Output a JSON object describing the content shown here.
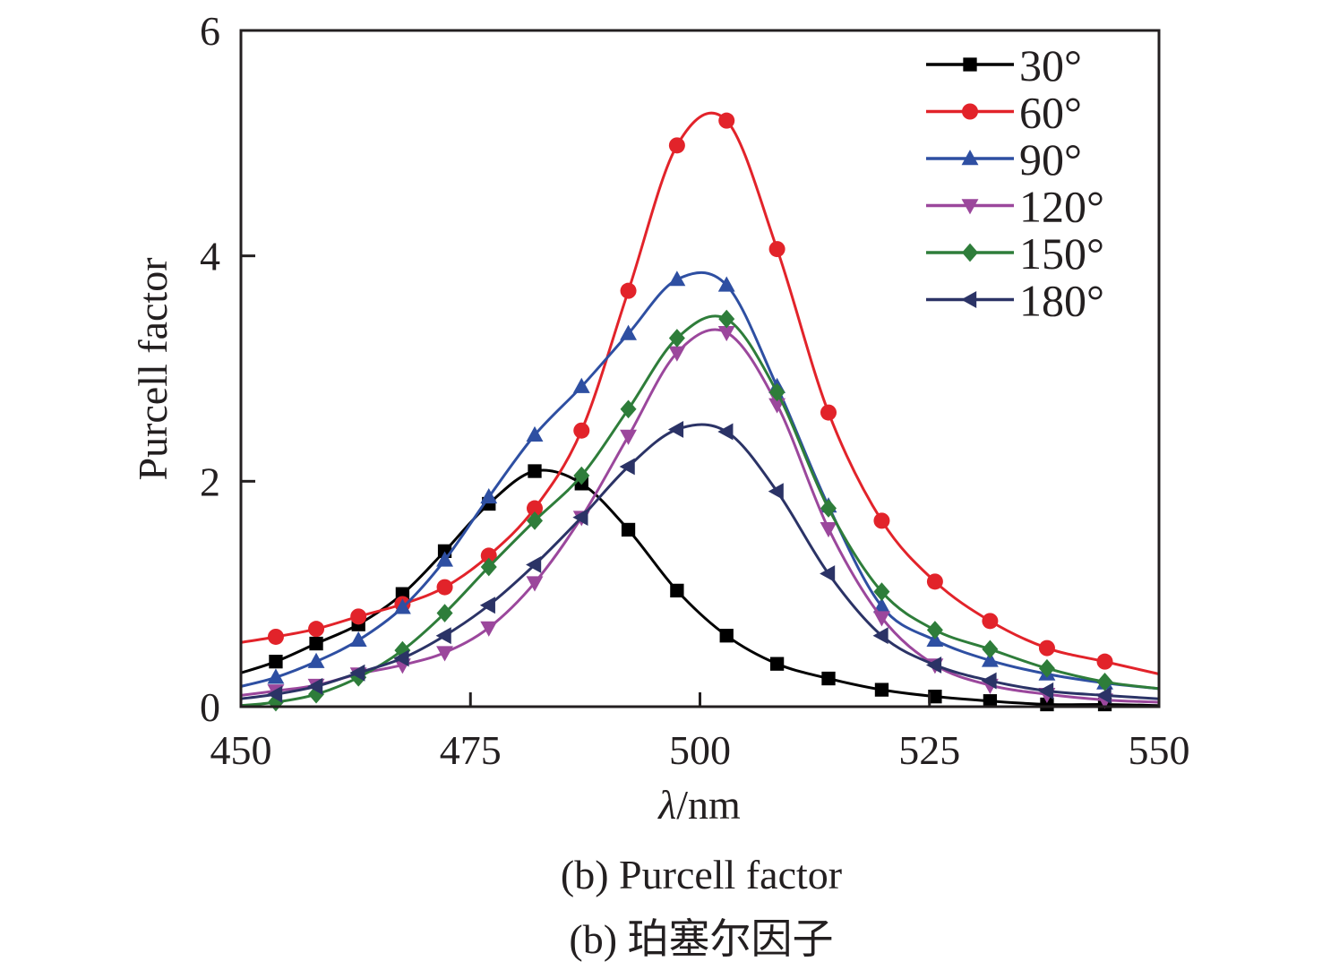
{
  "chart_data": {
    "type": "line",
    "title": "",
    "xlabel_italic": "λ",
    "xlabel_rest": "/nm",
    "ylabel": "Purcell factor",
    "xlim": [
      450,
      550
    ],
    "ylim": [
      0,
      6
    ],
    "xticks": [
      450,
      475,
      500,
      525,
      550
    ],
    "xtick_labels": [
      "450",
      "475",
      "500",
      "525",
      "550"
    ],
    "yticks": [
      0,
      2,
      4,
      6
    ],
    "ytick_labels": [
      "0",
      "2",
      "4",
      "6"
    ],
    "grid": false,
    "legend_position": "top-right",
    "x": [
      453.8,
      458.2,
      462.8,
      467.6,
      472.2,
      477.0,
      482.0,
      487.1,
      492.2,
      497.5,
      502.9,
      508.4,
      514.0,
      519.8,
      525.6,
      531.6,
      537.8,
      544.1
    ],
    "series": [
      {
        "name": "30°",
        "color": "#000000",
        "marker": "square",
        "values": [
          0.4,
          0.56,
          0.73,
          1.0,
          1.38,
          1.8,
          2.09,
          1.98,
          1.57,
          1.03,
          0.63,
          0.38,
          0.25,
          0.15,
          0.09,
          0.05,
          0.02,
          0.02
        ],
        "edge": [
          0.3,
          0.01
        ]
      },
      {
        "name": "60°",
        "color": "#e2232a",
        "marker": "circle",
        "values": [
          0.62,
          0.69,
          0.8,
          0.91,
          1.06,
          1.34,
          1.76,
          2.45,
          3.69,
          4.98,
          5.2,
          4.06,
          2.61,
          1.65,
          1.11,
          0.76,
          0.52,
          0.4
        ],
        "edge": [
          0.57,
          0.29
        ]
      },
      {
        "name": "90°",
        "color": "#2e4fa2",
        "marker": "triangle-up",
        "values": [
          0.26,
          0.4,
          0.59,
          0.88,
          1.3,
          1.86,
          2.41,
          2.84,
          3.31,
          3.79,
          3.74,
          2.84,
          1.78,
          0.89,
          0.59,
          0.41,
          0.29,
          0.21
        ],
        "edge": [
          0.18,
          0.16
        ]
      },
      {
        "name": "120°",
        "color": "#9b479c",
        "marker": "triangle-down",
        "values": [
          0.14,
          0.19,
          0.29,
          0.37,
          0.48,
          0.7,
          1.1,
          1.68,
          2.4,
          3.14,
          3.32,
          2.68,
          1.58,
          0.79,
          0.37,
          0.19,
          0.11,
          0.06
        ],
        "edge": [
          0.1,
          0.04
        ]
      },
      {
        "name": "150°",
        "color": "#2e7d3a",
        "marker": "diamond",
        "values": [
          0.04,
          0.11,
          0.26,
          0.5,
          0.83,
          1.24,
          1.65,
          2.05,
          2.64,
          3.27,
          3.44,
          2.79,
          1.76,
          1.02,
          0.68,
          0.51,
          0.34,
          0.22
        ],
        "edge": [
          0.01,
          0.16
        ]
      },
      {
        "name": "180°",
        "color": "#2b3366",
        "marker": "triangle-left",
        "values": [
          0.11,
          0.18,
          0.3,
          0.43,
          0.63,
          0.9,
          1.26,
          1.68,
          2.13,
          2.46,
          2.44,
          1.91,
          1.18,
          0.63,
          0.37,
          0.23,
          0.14,
          0.1
        ],
        "edge": [
          0.07,
          0.07
        ]
      }
    ]
  },
  "caption": {
    "line1": "(b) Purcell factor",
    "line2": "(b) 珀塞尔因子"
  }
}
